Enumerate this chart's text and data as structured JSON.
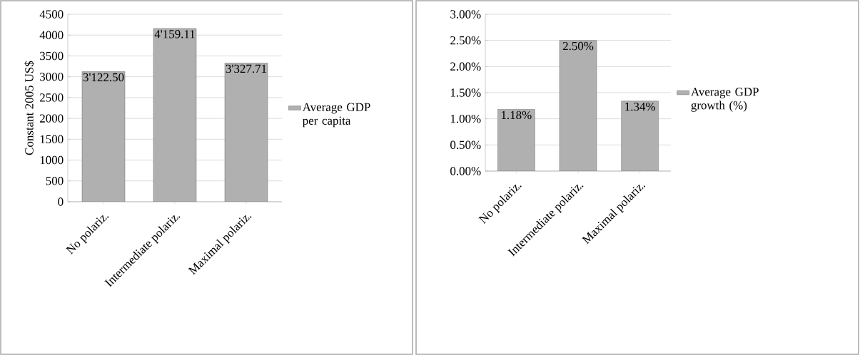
{
  "chart_data": [
    {
      "type": "bar",
      "ylabel": "Constant 2005 US$",
      "categories": [
        "No polariz.",
        "Intermediate polariz.",
        "Maximal polariz."
      ],
      "series": [
        {
          "name": "Average GDP per capita",
          "color": "#b0b0b0",
          "values": [
            3122.5,
            4159.11,
            3327.71
          ],
          "value_labels": [
            "3'122.50",
            "4'159.11",
            "3'327.71"
          ]
        }
      ],
      "ylim": [
        0,
        4500
      ],
      "yticks": [
        0,
        500,
        1000,
        1500,
        2000,
        2500,
        3000,
        3500,
        4000,
        4500
      ],
      "grid": "y",
      "legend": "right"
    },
    {
      "type": "bar",
      "categories": [
        "No polariz.",
        "Intermediate polariz.",
        "Maximal polariz."
      ],
      "series": [
        {
          "name": "Average GDP growth (%)",
          "color": "#b0b0b0",
          "values": [
            1.18,
            2.5,
            1.34
          ],
          "value_labels": [
            "1.18%",
            "2.50%",
            "1.34%"
          ]
        }
      ],
      "ylim": [
        0,
        3
      ],
      "yticks": [
        {
          "value": 0,
          "label": "0.00%"
        },
        {
          "value": 0.5,
          "label": "0.50%"
        },
        {
          "value": 1,
          "label": "1.00%"
        },
        {
          "value": 1.5,
          "label": "1.50%"
        },
        {
          "value": 2,
          "label": "2.00%"
        },
        {
          "value": 2.5,
          "label": "2.50%"
        },
        {
          "value": 3,
          "label": "3.00%"
        }
      ],
      "grid": "y",
      "legend": "right"
    }
  ]
}
